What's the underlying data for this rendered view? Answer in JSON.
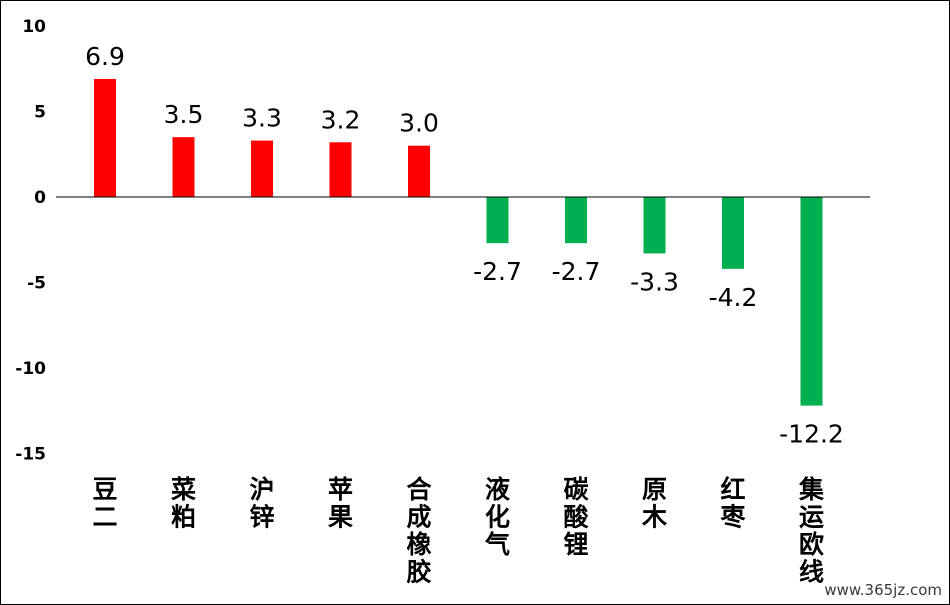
{
  "chart_data": {
    "type": "bar",
    "title": "",
    "xlabel": "",
    "ylabel": "",
    "categories": [
      "豆二",
      "菜粕",
      "沪锌",
      "苹果",
      "合成橡胶",
      "液化气",
      "碳酸锂",
      "原木",
      "红枣",
      "集运欧线"
    ],
    "values": [
      6.9,
      3.5,
      3.3,
      3.2,
      3.0,
      -2.7,
      -2.7,
      -3.3,
      -4.2,
      -12.2
    ],
    "value_labels": [
      "6.9",
      "3.5",
      "3.3",
      "3.2",
      "3.0",
      "-2.7",
      "-2.7",
      "-3.3",
      "-4.2",
      "-12.2"
    ],
    "ylim": [
      -15,
      10
    ],
    "yticks": [
      10,
      5,
      0,
      -5,
      -10,
      -15
    ],
    "ytick_labels": [
      "10",
      "5",
      "0",
      "-5",
      "-10",
      "-15"
    ],
    "grid": false,
    "legend": "none",
    "colors": {
      "positive": "#ff0000",
      "negative": "#00b050",
      "axis": "#000000"
    }
  },
  "watermark": "www.365jz.com"
}
